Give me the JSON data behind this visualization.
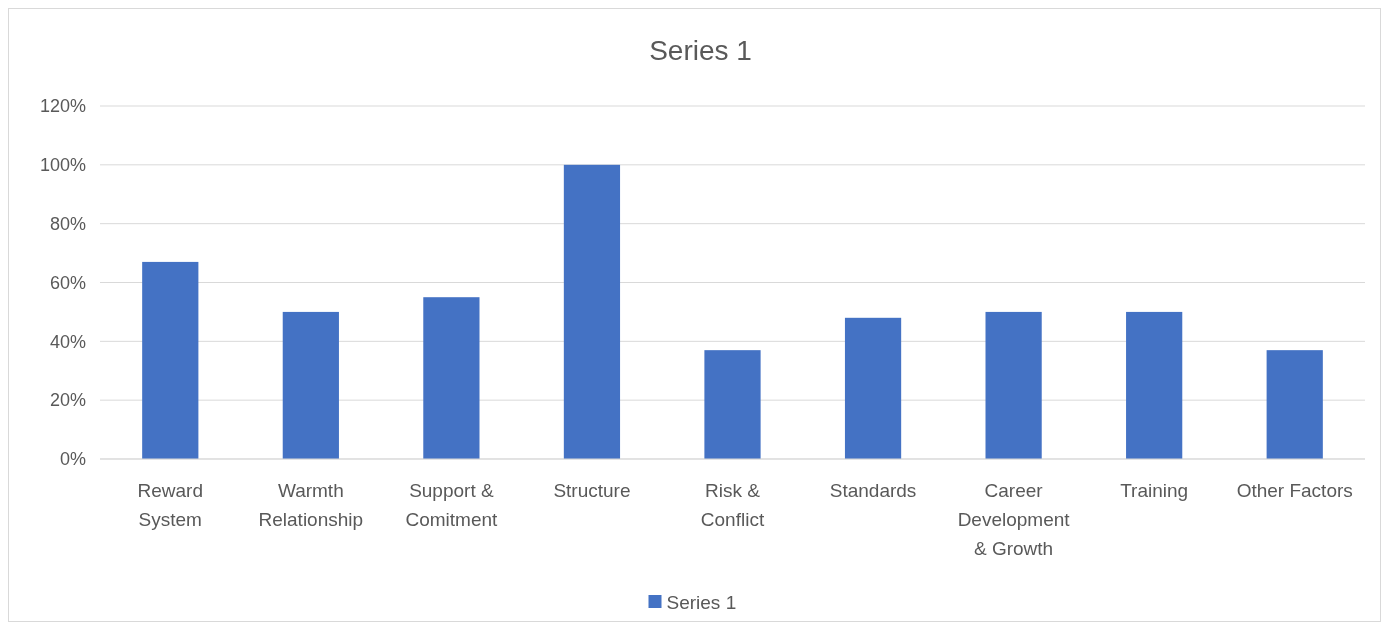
{
  "chart_data": {
    "type": "bar",
    "title": "Series 1",
    "categories": [
      "Reward System",
      "Warmth Relationship",
      "Support & Comitment",
      "Structure",
      "Risk & Conflict",
      "Standards",
      "Career Development & Growth",
      "Training",
      "Other Factors"
    ],
    "series": [
      {
        "name": "Series 1",
        "color": "#4472c4",
        "values": [
          67,
          50,
          55,
          100,
          37,
          48,
          50,
          50,
          37
        ]
      }
    ],
    "ylim": [
      0,
      120
    ],
    "yticks": [
      {
        "value": 0,
        "label": "0%"
      },
      {
        "value": 20,
        "label": "20%"
      },
      {
        "value": 40,
        "label": "40%"
      },
      {
        "value": 60,
        "label": "60%"
      },
      {
        "value": 80,
        "label": "80%"
      },
      {
        "value": 100,
        "label": "100%"
      },
      {
        "value": 120,
        "label": "120%"
      }
    ],
    "grid": "y",
    "legend": "bottom"
  }
}
